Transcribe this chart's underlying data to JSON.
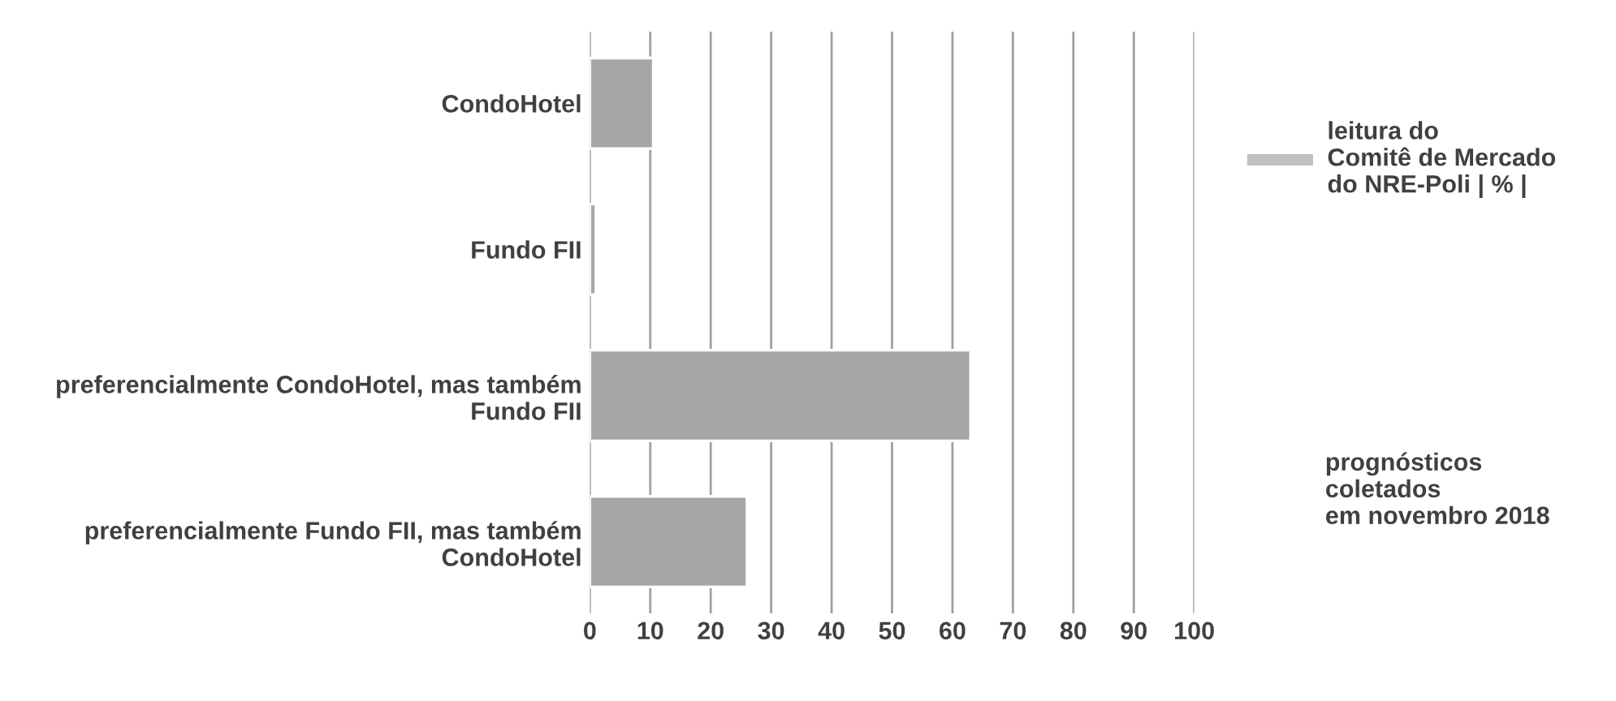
{
  "chart_data": {
    "type": "bar",
    "orientation": "horizontal",
    "categories": [
      "CondoHotel",
      "Fundo FII",
      "preferencialmente CondoHotel, mas também Fundo FII",
      "preferencialmente Fundo FII, mas também CondoHotel"
    ],
    "series": [
      {
        "name": "leitura do\nComitê de Mercado\ndo NRE-Poli | % |",
        "color": "#a6a6a6",
        "values": [
          10.5,
          1,
          63,
          26
        ]
      }
    ],
    "xlim": [
      0,
      100
    ],
    "xticks": [
      0,
      10,
      20,
      30,
      40,
      50,
      60,
      70,
      80,
      90,
      100
    ],
    "grid": "x",
    "legend": "right",
    "annotations": [
      "prognósticos\ncoletados\nem novembro 2018"
    ]
  }
}
